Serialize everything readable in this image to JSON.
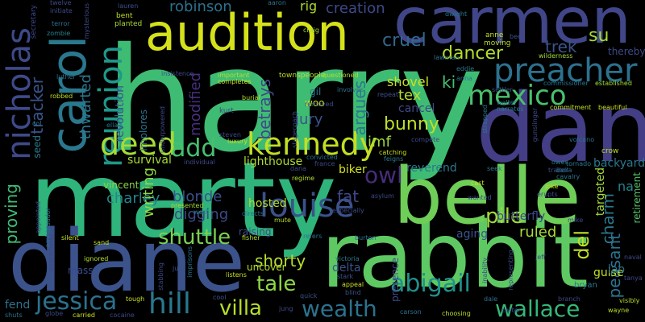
{
  "words": [
    {
      "text": "harry",
      "color": "#3fbc73"
    },
    {
      "text": "marty",
      "color": "#2fb47c"
    },
    {
      "text": "dan",
      "color": "#433e85"
    },
    {
      "text": "rabbit",
      "color": "#5ec962"
    },
    {
      "text": "diane",
      "color": "#3b528b"
    },
    {
      "text": "belle",
      "color": "#6ece58"
    },
    {
      "text": "carmen",
      "color": "#404688"
    },
    {
      "text": "audition",
      "color": "#d5e21a"
    },
    {
      "text": "carol",
      "color": "#2a788e"
    },
    {
      "text": "nicholas",
      "color": "#3e4a89"
    },
    {
      "text": "reunion",
      "color": "#1f988b"
    },
    {
      "text": "preacher",
      "color": "#2c718e"
    },
    {
      "text": "mexico",
      "color": "#4ac16d"
    },
    {
      "text": "kennedy",
      "color": "#c2df23"
    },
    {
      "text": "deed",
      "color": "#a5db36"
    },
    {
      "text": "add",
      "color": "#46c06f"
    },
    {
      "text": "louise",
      "color": "#3b528b"
    },
    {
      "text": "abigail",
      "color": "#21918c"
    },
    {
      "text": "wallace",
      "color": "#35b779"
    },
    {
      "text": "wealth",
      "color": "#2c728e"
    },
    {
      "text": "hill",
      "color": "#2a788e"
    },
    {
      "text": "villa",
      "color": "#b5de2b"
    },
    {
      "text": "jessica",
      "color": "#2c728e"
    },
    {
      "text": "tale",
      "color": "#90d743"
    },
    {
      "text": "shuttle",
      "color": "#7ad151"
    },
    {
      "text": "pile",
      "color": "#a0da39"
    },
    {
      "text": "owl",
      "color": "#472d7b"
    },
    {
      "text": "bunny",
      "color": "#bddf26"
    },
    {
      "text": "dancer",
      "color": "#b5de2b"
    },
    {
      "text": "cruel",
      "color": "#31688e"
    },
    {
      "text": "tracker",
      "color": "#3a548c"
    },
    {
      "text": "thwarted",
      "color": "#2a788e"
    },
    {
      "text": "robinson",
      "color": "#2c728e"
    },
    {
      "text": "creation",
      "color": "#3e4989"
    },
    {
      "text": "trek",
      "color": "#3b528b"
    },
    {
      "text": "su",
      "color": "#a5db36"
    },
    {
      "text": "ki",
      "color": "#46c06f"
    },
    {
      "text": "tex",
      "color": "#b5de2b"
    },
    {
      "text": "imf",
      "color": "#9fda3a"
    },
    {
      "text": "fat",
      "color": "#3e4989"
    },
    {
      "text": "shorty",
      "color": "#b5de2b"
    },
    {
      "text": "del",
      "color": "#c0df25"
    },
    {
      "text": "charm",
      "color": "#2a788e"
    },
    {
      "text": "peasant",
      "color": "#2c728e"
    },
    {
      "text": "argues",
      "color": "#2a788e"
    },
    {
      "text": "betrays",
      "color": "#3e4989"
    },
    {
      "text": "modified",
      "color": "#46307e"
    },
    {
      "text": "proving",
      "color": "#3ebc74"
    },
    {
      "text": "charley",
      "color": "#25848e"
    },
    {
      "text": "blonde",
      "color": "#3b528b"
    },
    {
      "text": "digging",
      "color": "#3e4989"
    },
    {
      "text": "writing",
      "color": "#90d743"
    },
    {
      "text": "lighthouse",
      "color": "#addc30"
    },
    {
      "text": "survival",
      "color": "#a8db34"
    },
    {
      "text": "jury",
      "color": "#3b528b"
    },
    {
      "text": "shovel",
      "color": "#c8e020"
    },
    {
      "text": "reverend",
      "color": "#2a788e"
    },
    {
      "text": "biker",
      "color": "#d2e21b"
    },
    {
      "text": "hosted",
      "color": "#b2dd2d"
    },
    {
      "text": "ruled",
      "color": "#a8db34"
    },
    {
      "text": "butterfly",
      "color": "#3e4989"
    },
    {
      "text": "aging",
      "color": "#3b528b"
    },
    {
      "text": "delta",
      "color": "#3b528b"
    },
    {
      "text": "backyard",
      "color": "#2a788e"
    },
    {
      "text": "targeted",
      "color": "#a5db36"
    },
    {
      "text": "retirement",
      "color": "#52c569"
    },
    {
      "text": "cancel",
      "color": "#3e4989"
    },
    {
      "text": "revolution",
      "color": "#3b528b"
    },
    {
      "text": "woo",
      "color": "#c8e020"
    },
    {
      "text": "gil",
      "color": "#2a788e"
    },
    {
      "text": "na",
      "color": "#25848e"
    },
    {
      "text": "guise",
      "color": "#c5e021"
    },
    {
      "text": "lao",
      "color": "#2c728e"
    },
    {
      "text": "rig",
      "color": "#addc30"
    },
    {
      "text": "fend",
      "color": "#2c728e"
    },
    {
      "text": "seed",
      "color": "#2a788e"
    },
    {
      "text": "vincent",
      "color": "#8bd646"
    },
    {
      "text": "implores",
      "color": "#2c728e"
    },
    {
      "text": "raising",
      "color": "#3e4989"
    },
    {
      "text": "presence",
      "color": "#3e4989"
    },
    {
      "text": "thereby",
      "color": "#3e4989"
    },
    {
      "text": "bryan",
      "color": "#2a788e"
    },
    {
      "text": "mass",
      "color": "#3e4989"
    },
    {
      "text": "uncover",
      "color": "#b5de2b"
    },
    {
      "text": "twelve",
      "color": "#3e4989"
    },
    {
      "text": "initiate",
      "color": "#3e4989"
    },
    {
      "text": "zombie",
      "color": "#25848e"
    },
    {
      "text": "terror",
      "color": "#2c728e"
    },
    {
      "text": "secretary",
      "color": "#3e4989"
    },
    {
      "text": "lauren",
      "color": "#3b528b"
    },
    {
      "text": "mysterious",
      "color": "#3e4989"
    },
    {
      "text": "bent",
      "color": "#bddf26"
    },
    {
      "text": "planted",
      "color": "#a5db36"
    },
    {
      "text": "aaron",
      "color": "#2c728e"
    },
    {
      "text": "dwight",
      "color": "#2a788e"
    },
    {
      "text": "anne",
      "color": "#c8e020"
    },
    {
      "text": "moving",
      "color": "#b5de2b"
    },
    {
      "text": "bee",
      "color": "#3b528b"
    },
    {
      "text": "craig",
      "color": "#a8db34"
    },
    {
      "text": "townspeople",
      "color": "#b5de2b"
    },
    {
      "text": "questioned",
      "color": "#b5de2b"
    },
    {
      "text": "important",
      "color": "#b5de2b"
    },
    {
      "text": "insistence",
      "color": "#3e4989"
    },
    {
      "text": "lawman",
      "color": "#2c728e"
    },
    {
      "text": "wilderness",
      "color": "#a5db36"
    },
    {
      "text": "luther",
      "color": "#2c728e"
    },
    {
      "text": "eddie",
      "color": "#2a788e"
    },
    {
      "text": "anna",
      "color": "#2a788e"
    },
    {
      "text": "commissioner",
      "color": "#2c728e"
    },
    {
      "text": "established",
      "color": "#a5db36"
    },
    {
      "text": "completes",
      "color": "#c8e020"
    },
    {
      "text": "settler",
      "color": "#3b528b"
    },
    {
      "text": "walter",
      "color": "#2c728e"
    },
    {
      "text": "narrates",
      "color": "#2a788e"
    },
    {
      "text": "commitment",
      "color": "#c8e020"
    },
    {
      "text": "beautiful",
      "color": "#c8e020"
    },
    {
      "text": "robbed",
      "color": "#bddf26"
    },
    {
      "text": "col",
      "color": "#2c728e"
    },
    {
      "text": "ella",
      "color": "#2c728e"
    },
    {
      "text": "burial",
      "color": "#b5de2b"
    },
    {
      "text": "kurt",
      "color": "#3e4989"
    },
    {
      "text": "removed",
      "color": "#3b528b"
    },
    {
      "text": "involves",
      "color": "#2c728e"
    },
    {
      "text": "repeat",
      "color": "#3b528b"
    },
    {
      "text": "gunslinger",
      "color": "#3e4989"
    },
    {
      "text": "volcano",
      "color": "#2c728e"
    },
    {
      "text": "crow",
      "color": "#bddf26"
    },
    {
      "text": "steven",
      "color": "#3e4989"
    },
    {
      "text": "luxury",
      "color": "#c8e020"
    },
    {
      "text": "individual",
      "color": "#3e4989"
    },
    {
      "text": "catching",
      "color": "#c8e020"
    },
    {
      "text": "compete",
      "color": "#3e4989"
    },
    {
      "text": "owes",
      "color": "#2a788e"
    },
    {
      "text": "tornado",
      "color": "#2a788e"
    },
    {
      "text": "convicted",
      "color": "#2c728e"
    },
    {
      "text": "france",
      "color": "#3e4989"
    },
    {
      "text": "feigns",
      "color": "#2a788e"
    },
    {
      "text": "traitor",
      "color": "#3e4989"
    },
    {
      "text": "cavalry",
      "color": "#2a788e"
    },
    {
      "text": "bella",
      "color": "#2a788e"
    },
    {
      "text": "seek",
      "color": "#2a788e"
    },
    {
      "text": "dana",
      "color": "#3e4989"
    },
    {
      "text": "regime",
      "color": "#b5de2b"
    },
    {
      "text": "asylum",
      "color": "#3e4989"
    },
    {
      "text": "cast",
      "color": "#c8e020"
    },
    {
      "text": "joke",
      "color": "#c8e020"
    },
    {
      "text": "erupts",
      "color": "#3e4989"
    },
    {
      "text": "wanted",
      "color": "#3b528b"
    },
    {
      "text": "directs",
      "color": "#2c728e"
    },
    {
      "text": "presented",
      "color": "#a8db34"
    },
    {
      "text": "west",
      "color": "#2a788e"
    },
    {
      "text": "appointed",
      "color": "#3e4989"
    },
    {
      "text": "ambassador",
      "color": "#2c728e"
    },
    {
      "text": "especially",
      "color": "#3e4989"
    },
    {
      "text": "mike",
      "color": "#3e4989"
    },
    {
      "text": "mute",
      "color": "#b5de2b"
    },
    {
      "text": "silent",
      "color": "#c8e020"
    },
    {
      "text": "sand",
      "color": "#c8e020"
    },
    {
      "text": "fisher",
      "color": "#b5de2b"
    },
    {
      "text": "refers",
      "color": "#2c728e"
    },
    {
      "text": "burton",
      "color": "#2c728e"
    },
    {
      "text": "overpower",
      "color": "#3e4989"
    },
    {
      "text": "ignored",
      "color": "#b5de2b"
    },
    {
      "text": "july",
      "color": "#3b528b"
    },
    {
      "text": "imprisons",
      "color": "#2c728e"
    },
    {
      "text": "listens",
      "color": "#c8e020"
    },
    {
      "text": "victoria",
      "color": "#2a788e"
    },
    {
      "text": "stark",
      "color": "#3b528b"
    },
    {
      "text": "appeal",
      "color": "#c8e020"
    },
    {
      "text": "blind",
      "color": "#3b528b"
    },
    {
      "text": "jeff",
      "color": "#3e4989"
    },
    {
      "text": "naval",
      "color": "#3e4989"
    },
    {
      "text": "tanya",
      "color": "#3e4989"
    },
    {
      "text": "visibly",
      "color": "#b5de2b"
    },
    {
      "text": "wayne",
      "color": "#b5de2b"
    },
    {
      "text": "branch",
      "color": "#3e4989"
    },
    {
      "text": "stabbing",
      "color": "#3e4989"
    },
    {
      "text": "tough",
      "color": "#c8e020"
    },
    {
      "text": "cool",
      "color": "#3b528b"
    },
    {
      "text": "quick",
      "color": "#3b528b"
    },
    {
      "text": "jung",
      "color": "#3e4989"
    },
    {
      "text": "dale",
      "color": "#2c728e"
    },
    {
      "text": "carter",
      "color": "#3b528b"
    },
    {
      "text": "carson",
      "color": "#2c728e"
    },
    {
      "text": "choosing",
      "color": "#b5de2b"
    },
    {
      "text": "inability",
      "color": "#3e4989"
    },
    {
      "text": "representing",
      "color": "#3e4989"
    },
    {
      "text": "shuts",
      "color": "#2c728e"
    },
    {
      "text": "globe",
      "color": "#3e4989"
    },
    {
      "text": "carried",
      "color": "#c8e020"
    },
    {
      "text": "cocaine",
      "color": "#3e4989"
    },
    {
      "text": "stagecoach",
      "color": "#3e4989"
    },
    {
      "text": "strapped",
      "color": "#2a788e"
    },
    {
      "text": "underpowered",
      "color": "#3e4989"
    }
  ]
}
